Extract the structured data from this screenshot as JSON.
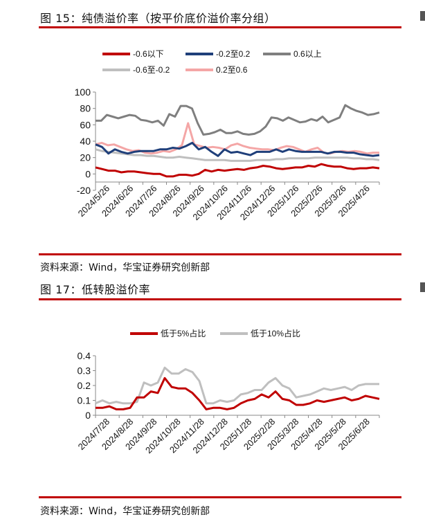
{
  "figure15": {
    "title": "图 15：纯债溢价率（按平价底价溢价率分组）",
    "source": "资料来源：Wind，华宝证券研究创新部"
  },
  "figure17": {
    "title": "图 17：低转股溢价率",
    "source": "资料来源：Wind，华宝证券研究创新部"
  },
  "chart_data": [
    {
      "type": "line",
      "title": "",
      "xlabel": "",
      "ylabel": "",
      "ylim": [
        -20,
        100
      ],
      "yticks": [
        "-20",
        "0",
        "20",
        "40",
        "60",
        "80",
        "100"
      ],
      "xticks": [
        "2024/5/26",
        "2024/6/26",
        "2024/7/26",
        "2024/8/26",
        "2024/9/26",
        "2024/10/26",
        "2024/11/26",
        "2024/12/26",
        "2025/1/26",
        "2025/2/26",
        "2025/3/26",
        "2025/4/26"
      ],
      "grid": false,
      "legend": "top",
      "colors": {
        "s1": "#c00000",
        "s2": "#1f3f7a",
        "s3": "#7f7f7f",
        "s4": "#bfbfbf",
        "s5": "#f4a6a6"
      },
      "series": [
        {
          "name": "-0.6以下",
          "color": "#c00000",
          "values": [
            8,
            6,
            4,
            4,
            2,
            3,
            3,
            2,
            1,
            0,
            0,
            -3,
            -3,
            -1,
            -1,
            -2,
            0,
            5,
            3,
            5,
            4,
            5,
            6,
            5,
            7,
            8,
            10,
            9,
            7,
            6,
            7,
            8,
            8,
            10,
            9,
            12,
            10,
            9,
            9,
            7,
            6,
            7,
            7,
            8,
            7
          ]
        },
        {
          "name": "-0.2至0.2",
          "color": "#1f3f7a",
          "values": [
            36,
            33,
            25,
            30,
            27,
            25,
            27,
            28,
            28,
            28,
            30,
            30,
            32,
            31,
            34,
            38,
            30,
            33,
            27,
            22,
            30,
            26,
            27,
            25,
            23,
            27,
            27,
            27,
            30,
            27,
            30,
            28,
            27,
            27,
            27,
            27,
            25,
            27,
            27,
            26,
            26,
            24,
            23,
            22,
            23
          ]
        },
        {
          "name": "0.6以上",
          "color": "#7f7f7f",
          "values": [
            65,
            65,
            72,
            70,
            68,
            70,
            72,
            71,
            66,
            65,
            63,
            65,
            59,
            73,
            70,
            83,
            83,
            80,
            62,
            48,
            49,
            51,
            54,
            50,
            50,
            52,
            49,
            48,
            49,
            52,
            58,
            69,
            68,
            65,
            69,
            66,
            63,
            64,
            67,
            65,
            70,
            63,
            66,
            69,
            84,
            80,
            77,
            75,
            72,
            73,
            75
          ]
        },
        {
          "name": "-0.6至-0.2",
          "color": "#bfbfbf",
          "values": [
            30,
            28,
            27,
            26,
            25,
            24,
            23,
            23,
            22,
            22,
            21,
            20,
            20,
            21,
            20,
            19,
            18,
            17,
            17,
            17,
            17,
            16,
            16,
            16,
            16,
            17,
            17,
            17,
            18,
            18,
            19,
            19,
            19,
            19,
            20,
            20,
            20,
            20,
            20,
            20,
            19,
            19,
            18,
            18,
            17
          ]
        },
        {
          "name": "0.2至0.6",
          "color": "#f4a6a6",
          "values": [
            36,
            38,
            35,
            36,
            33,
            30,
            28,
            29,
            26,
            25,
            26,
            28,
            27,
            30,
            35,
            62,
            36,
            34,
            32,
            33,
            32,
            30,
            35,
            37,
            34,
            32,
            31,
            30,
            30,
            29,
            32,
            34,
            33,
            30,
            27,
            30,
            32,
            26,
            25,
            27,
            28,
            27,
            28,
            27,
            25,
            26,
            26
          ]
        }
      ]
    },
    {
      "type": "line",
      "title": "",
      "xlabel": "",
      "ylabel": "",
      "ylim": [
        0,
        0.4
      ],
      "yticks": [
        "0",
        "0.1",
        "0.2",
        "0.3",
        "0.4"
      ],
      "xticks": [
        "2024/7/28",
        "2024/8/28",
        "2024/9/28",
        "2024/10/28",
        "2024/11/28",
        "2024/12/28",
        "2025/1/28",
        "2025/2/28",
        "2025/3/28",
        "2025/4/28",
        "2025/5/28",
        "2025/6/28"
      ],
      "grid": false,
      "legend": "top",
      "series": [
        {
          "name": "低于5%占比",
          "color": "#c00000",
          "values": [
            0.05,
            0.05,
            0.06,
            0.04,
            0.04,
            0.05,
            0.12,
            0.12,
            0.16,
            0.15,
            0.25,
            0.19,
            0.18,
            0.18,
            0.15,
            0.1,
            0.04,
            0.05,
            0.05,
            0.04,
            0.05,
            0.08,
            0.1,
            0.11,
            0.14,
            0.12,
            0.16,
            0.11,
            0.1,
            0.07,
            0.07,
            0.08,
            0.1,
            0.09,
            0.1,
            0.11,
            0.12,
            0.1,
            0.11,
            0.13,
            0.12,
            0.11
          ]
        },
        {
          "name": "低于10%占比",
          "color": "#bfbfbf",
          "values": [
            0.08,
            0.1,
            0.08,
            0.09,
            0.08,
            0.08,
            0.09,
            0.22,
            0.2,
            0.22,
            0.32,
            0.28,
            0.28,
            0.31,
            0.29,
            0.23,
            0.08,
            0.08,
            0.1,
            0.09,
            0.1,
            0.14,
            0.15,
            0.17,
            0.17,
            0.22,
            0.25,
            0.2,
            0.18,
            0.12,
            0.13,
            0.14,
            0.16,
            0.18,
            0.17,
            0.18,
            0.19,
            0.17,
            0.2,
            0.21,
            0.21,
            0.21
          ]
        }
      ]
    }
  ]
}
